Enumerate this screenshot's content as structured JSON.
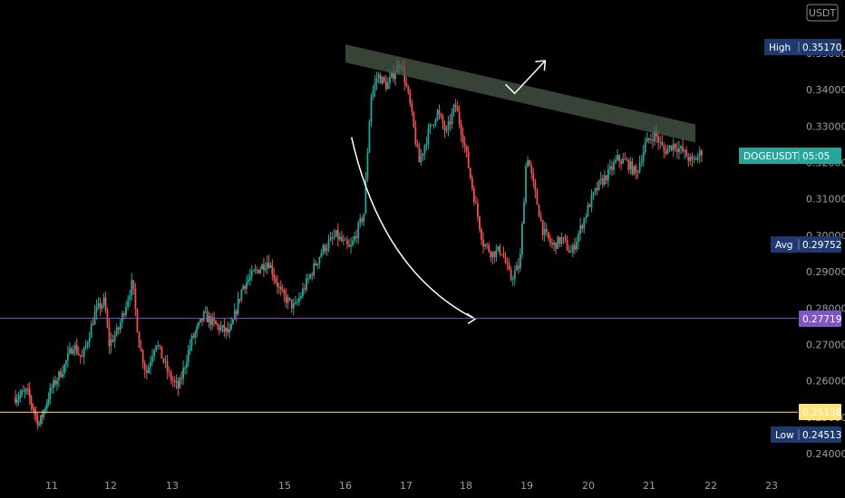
{
  "currency_badge": "USDT",
  "colors": {
    "background": "#000000",
    "up": "#26a69a",
    "down": "#ef5350",
    "purple_line": "#7e57c2",
    "yellow_line": "#ffe27a",
    "trend_band": "#4a5a48",
    "tag_blue": "#1e3a6e",
    "tag_teal": "#26a69a"
  },
  "chart_data": {
    "type": "candlestick",
    "symbol": "DOGEUSDT",
    "countdown": "05:05",
    "ylim": [
      0.235,
      0.362
    ],
    "y_ticks": [
      "0.24000",
      "0.25000",
      "0.26000",
      "0.27000",
      "0.28000",
      "0.29000",
      "0.30000",
      "0.31000",
      "0.32000",
      "0.33000",
      "0.34000",
      "0.35000"
    ],
    "x_ticks": [
      "11",
      "12",
      "13",
      "15",
      "16",
      "17",
      "18",
      "19",
      "20",
      "21",
      "22",
      "23"
    ],
    "x_tick_days": [
      11,
      12,
      13,
      15,
      16,
      17,
      18,
      19,
      20,
      21,
      22,
      23
    ],
    "x_day_offset": {
      "comment_free": true
    },
    "price_anchors": [
      [
        10.0,
        0.2555
      ],
      [
        10.3,
        0.257
      ],
      [
        10.6,
        0.248
      ],
      [
        10.9,
        0.2575
      ],
      [
        11.2,
        0.264
      ],
      [
        11.4,
        0.27
      ],
      [
        11.6,
        0.266
      ],
      [
        11.9,
        0.279
      ],
      [
        12.1,
        0.282
      ],
      [
        12.2,
        0.27
      ],
      [
        12.4,
        0.274
      ],
      [
        12.7,
        0.287
      ],
      [
        12.85,
        0.27
      ],
      [
        13.0,
        0.262
      ],
      [
        13.2,
        0.271
      ],
      [
        13.5,
        0.261
      ],
      [
        13.7,
        0.258
      ],
      [
        14.0,
        0.271
      ],
      [
        14.3,
        0.278
      ],
      [
        14.6,
        0.275
      ],
      [
        14.9,
        0.273
      ],
      [
        15.2,
        0.286
      ],
      [
        15.5,
        0.29
      ],
      [
        15.8,
        0.293
      ],
      [
        16.1,
        0.284
      ],
      [
        16.4,
        0.28
      ],
      [
        16.7,
        0.288
      ],
      [
        17.0,
        0.296
      ],
      [
        17.3,
        0.3
      ],
      [
        17.6,
        0.296
      ],
      [
        17.9,
        0.306
      ],
      [
        18.05,
        0.338
      ],
      [
        18.2,
        0.344
      ],
      [
        18.4,
        0.341
      ],
      [
        18.7,
        0.348
      ],
      [
        18.9,
        0.336
      ],
      [
        19.1,
        0.32
      ],
      [
        19.3,
        0.328
      ],
      [
        19.5,
        0.334
      ],
      [
        19.7,
        0.328
      ],
      [
        19.9,
        0.336
      ],
      [
        20.1,
        0.325
      ],
      [
        20.3,
        0.311
      ],
      [
        20.5,
        0.298
      ],
      [
        20.7,
        0.295
      ],
      [
        20.9,
        0.296
      ],
      [
        21.1,
        0.288
      ],
      [
        21.3,
        0.292
      ],
      [
        21.45,
        0.323
      ],
      [
        21.6,
        0.313
      ],
      [
        21.8,
        0.301
      ],
      [
        22.0,
        0.297
      ],
      [
        22.2,
        0.299
      ],
      [
        22.4,
        0.295
      ],
      [
        22.6,
        0.302
      ],
      [
        22.8,
        0.309
      ],
      [
        23.0,
        0.314
      ],
      [
        23.2,
        0.317
      ],
      [
        23.4,
        0.321
      ],
      [
        23.6,
        0.32
      ],
      [
        23.8,
        0.317
      ],
      [
        24.0,
        0.325
      ],
      [
        24.2,
        0.328
      ],
      [
        24.4,
        0.323
      ],
      [
        24.6,
        0.325
      ],
      [
        24.8,
        0.323
      ],
      [
        25.0,
        0.32
      ],
      [
        25.2,
        0.323
      ]
    ],
    "trend_band": {
      "start": [
        16.0,
        0.35
      ],
      "end": [
        21.75,
        0.328
      ],
      "thickness": 0.005
    },
    "curve_arrow": {
      "from": [
        16.1,
        0.327
      ],
      "ctrl": [
        16.6,
        0.29
      ],
      "to": [
        18.15,
        0.277
      ]
    },
    "breakout_arrow": {
      "from": [
        18.8,
        0.339
      ],
      "to": [
        19.3,
        0.348
      ]
    },
    "levels": [
      {
        "name": "High",
        "value": "0.35170",
        "color": "#1e3a6e",
        "line": false
      },
      {
        "name": "DOGEUSDT",
        "value": "05:05",
        "price": 0.3218,
        "color": "#26a69a",
        "line": false
      },
      {
        "name": "Avg",
        "value": "0.29752",
        "color": "#1e3a6e",
        "line": false
      },
      {
        "name": "",
        "value": "0.27719",
        "price": 0.27719,
        "color": "#7e57c2",
        "line": true
      },
      {
        "name": "",
        "value": "0.25138",
        "price": 0.25138,
        "color": "#ffe27a",
        "line": true
      },
      {
        "name": "Low",
        "value": "0.24513",
        "color": "#1e3a6e",
        "line": false
      }
    ]
  }
}
